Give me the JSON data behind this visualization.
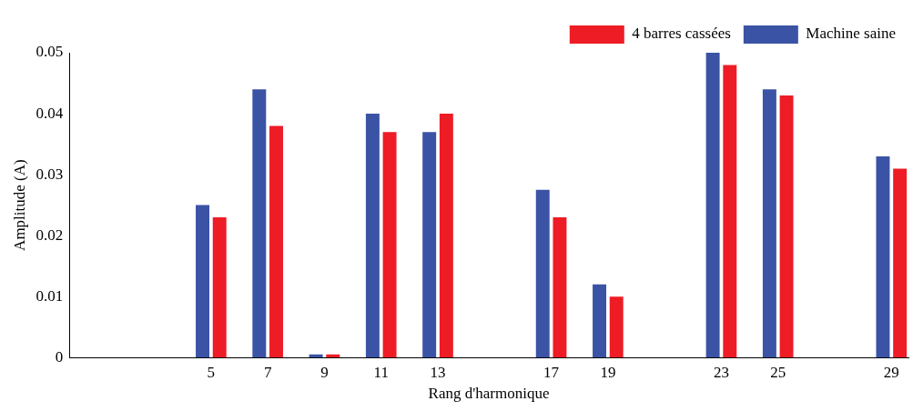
{
  "chart_data": {
    "type": "bar",
    "xlabel": "Rang d'harmonique",
    "ylabel": "Amplitude (A)",
    "x": [
      5,
      7,
      9,
      11,
      13,
      17,
      19,
      23,
      25,
      29
    ],
    "series": [
      {
        "name": "Machine saine",
        "color": "#3a53a4",
        "values": [
          0.025,
          0.044,
          0.0005,
          0.04,
          0.037,
          0.0275,
          0.012,
          0.05,
          0.044,
          0.033
        ]
      },
      {
        "name": "4 barres cassées",
        "color": "#ee1c25",
        "values": [
          0.023,
          0.038,
          0.0005,
          0.037,
          0.04,
          0.023,
          0.01,
          0.048,
          0.043,
          0.031
        ]
      }
    ],
    "xlim": [
      0,
      29.6
    ],
    "xticks": [
      5,
      7,
      9,
      11,
      13,
      17,
      19,
      23,
      25,
      29
    ],
    "ylim": [
      0,
      0.05
    ],
    "yticks": [
      0,
      0.01,
      0.02,
      0.03,
      0.04,
      0.05
    ],
    "grid": false,
    "legend": "top right"
  }
}
